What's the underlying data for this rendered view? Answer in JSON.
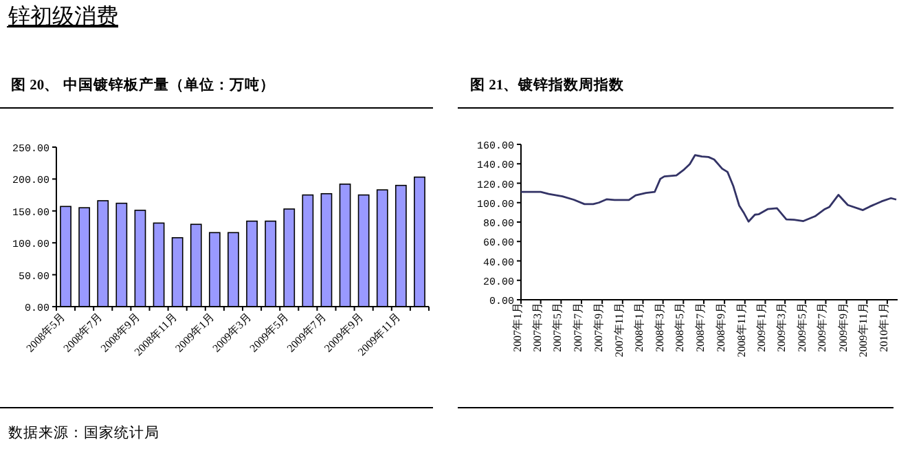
{
  "chart_data": [
    {
      "type": "bar",
      "title": "图 20、 中国镀锌板产量（单位：万吨）",
      "annotations": [
        "锌初级消费",
        "数据来源：国家统计局"
      ],
      "categories": [
        "2008年5月",
        null,
        "2008年7月",
        null,
        "2008年9月",
        null,
        "2008年11月",
        null,
        "2009年1月",
        null,
        "2009年3月",
        null,
        "2009年5月",
        null,
        "2009年7月",
        null,
        "2009年9月",
        null,
        "2009年11月",
        null
      ],
      "values": [
        157,
        155,
        166,
        162,
        151,
        131,
        108,
        129,
        116,
        116,
        134,
        134,
        153,
        175,
        177,
        192,
        175,
        183,
        190,
        203
      ],
      "color": "#9999ff",
      "ylim": [
        0,
        250
      ],
      "yticks": [
        {
          "value": 0,
          "label": "0.00"
        },
        {
          "value": 50,
          "label": "50.00"
        },
        {
          "value": 100,
          "label": "100.00"
        },
        {
          "value": 150,
          "label": "150.00"
        },
        {
          "value": 200,
          "label": "200.00"
        },
        {
          "value": 250,
          "label": "250.00"
        }
      ]
    },
    {
      "type": "line",
      "title": "图 21、镀锌指数周指数",
      "color": "#333366",
      "x": [
        "2007-01-01",
        "2007-03-01",
        "2007-03-25",
        "2007-05-05",
        "2007-06-08",
        "2007-07-10",
        "2007-08-05",
        "2007-08-22",
        "2007-09-15",
        "2007-10-08",
        "2007-11-20",
        "2007-12-10",
        "2008-01-10",
        "2008-02-05",
        "2008-02-22",
        "2008-03-05",
        "2008-04-10",
        "2008-05-01",
        "2008-05-20",
        "2008-06-05",
        "2008-06-25",
        "2008-07-15",
        "2008-08-01",
        "2008-08-25",
        "2008-09-10",
        "2008-09-27",
        "2008-10-15",
        "2008-10-28",
        "2008-11-12",
        "2008-12-01",
        "2008-12-12",
        "2009-01-08",
        "2009-02-05",
        "2009-03-05",
        "2009-03-28",
        "2009-04-25",
        "2009-05-30",
        "2009-06-28",
        "2009-07-12",
        "2009-08-08",
        "2009-09-05",
        "2009-10-20",
        "2009-11-10",
        "2009-12-15",
        "2010-01-12",
        "2010-01-28"
      ],
      "values": [
        111,
        111,
        109,
        106.5,
        103,
        98.5,
        98.5,
        100,
        103.5,
        102.7,
        102.7,
        107.5,
        110,
        111,
        124.5,
        127,
        128,
        133.5,
        139.6,
        149,
        147.5,
        147,
        144.4,
        135,
        131.6,
        117.4,
        97,
        90,
        80.5,
        87.6,
        88,
        93.3,
        94.2,
        82.8,
        82.4,
        81,
        86,
        93.3,
        95.6,
        108,
        97.5,
        92.3,
        96,
        101.3,
        104.6,
        103.2
      ],
      "xlim": [
        "2007-01-01",
        "2010-02-01"
      ],
      "xticks": [
        {
          "value": "2007-01-01",
          "label": "2007年1月"
        },
        {
          "value": "2007-03-01",
          "label": "2007年3月"
        },
        {
          "value": "2007-05-01",
          "label": "2007年5月"
        },
        {
          "value": "2007-07-01",
          "label": "2007年7月"
        },
        {
          "value": "2007-09-01",
          "label": "2007年9月"
        },
        {
          "value": "2007-11-01",
          "label": "2007年11月"
        },
        {
          "value": "2008-01-01",
          "label": "2008年1月"
        },
        {
          "value": "2008-03-01",
          "label": "2008年3月"
        },
        {
          "value": "2008-05-01",
          "label": "2008年5月"
        },
        {
          "value": "2008-07-01",
          "label": "2008年7月"
        },
        {
          "value": "2008-09-01",
          "label": "2008年9月"
        },
        {
          "value": "2008-11-01",
          "label": "2008年11月"
        },
        {
          "value": "2009-01-01",
          "label": "2009年1月"
        },
        {
          "value": "2009-03-01",
          "label": "2009年3月"
        },
        {
          "value": "2009-05-01",
          "label": "2009年5月"
        },
        {
          "value": "2009-07-01",
          "label": "2009年7月"
        },
        {
          "value": "2009-09-01",
          "label": "2009年9月"
        },
        {
          "value": "2009-11-01",
          "label": "2009年11月"
        },
        {
          "value": "2010-01-01",
          "label": "2010年1月"
        }
      ],
      "ylim": [
        0,
        160
      ],
      "yticks": [
        {
          "value": 0,
          "label": "0.00"
        },
        {
          "value": 20,
          "label": "20.00"
        },
        {
          "value": 40,
          "label": "40.00"
        },
        {
          "value": 60,
          "label": "60.00"
        },
        {
          "value": 80,
          "label": "80.00"
        },
        {
          "value": 100,
          "label": "100.00"
        },
        {
          "value": 120,
          "label": "120.00"
        },
        {
          "value": 140,
          "label": "140.00"
        },
        {
          "value": 160,
          "label": "160.00"
        }
      ]
    }
  ]
}
